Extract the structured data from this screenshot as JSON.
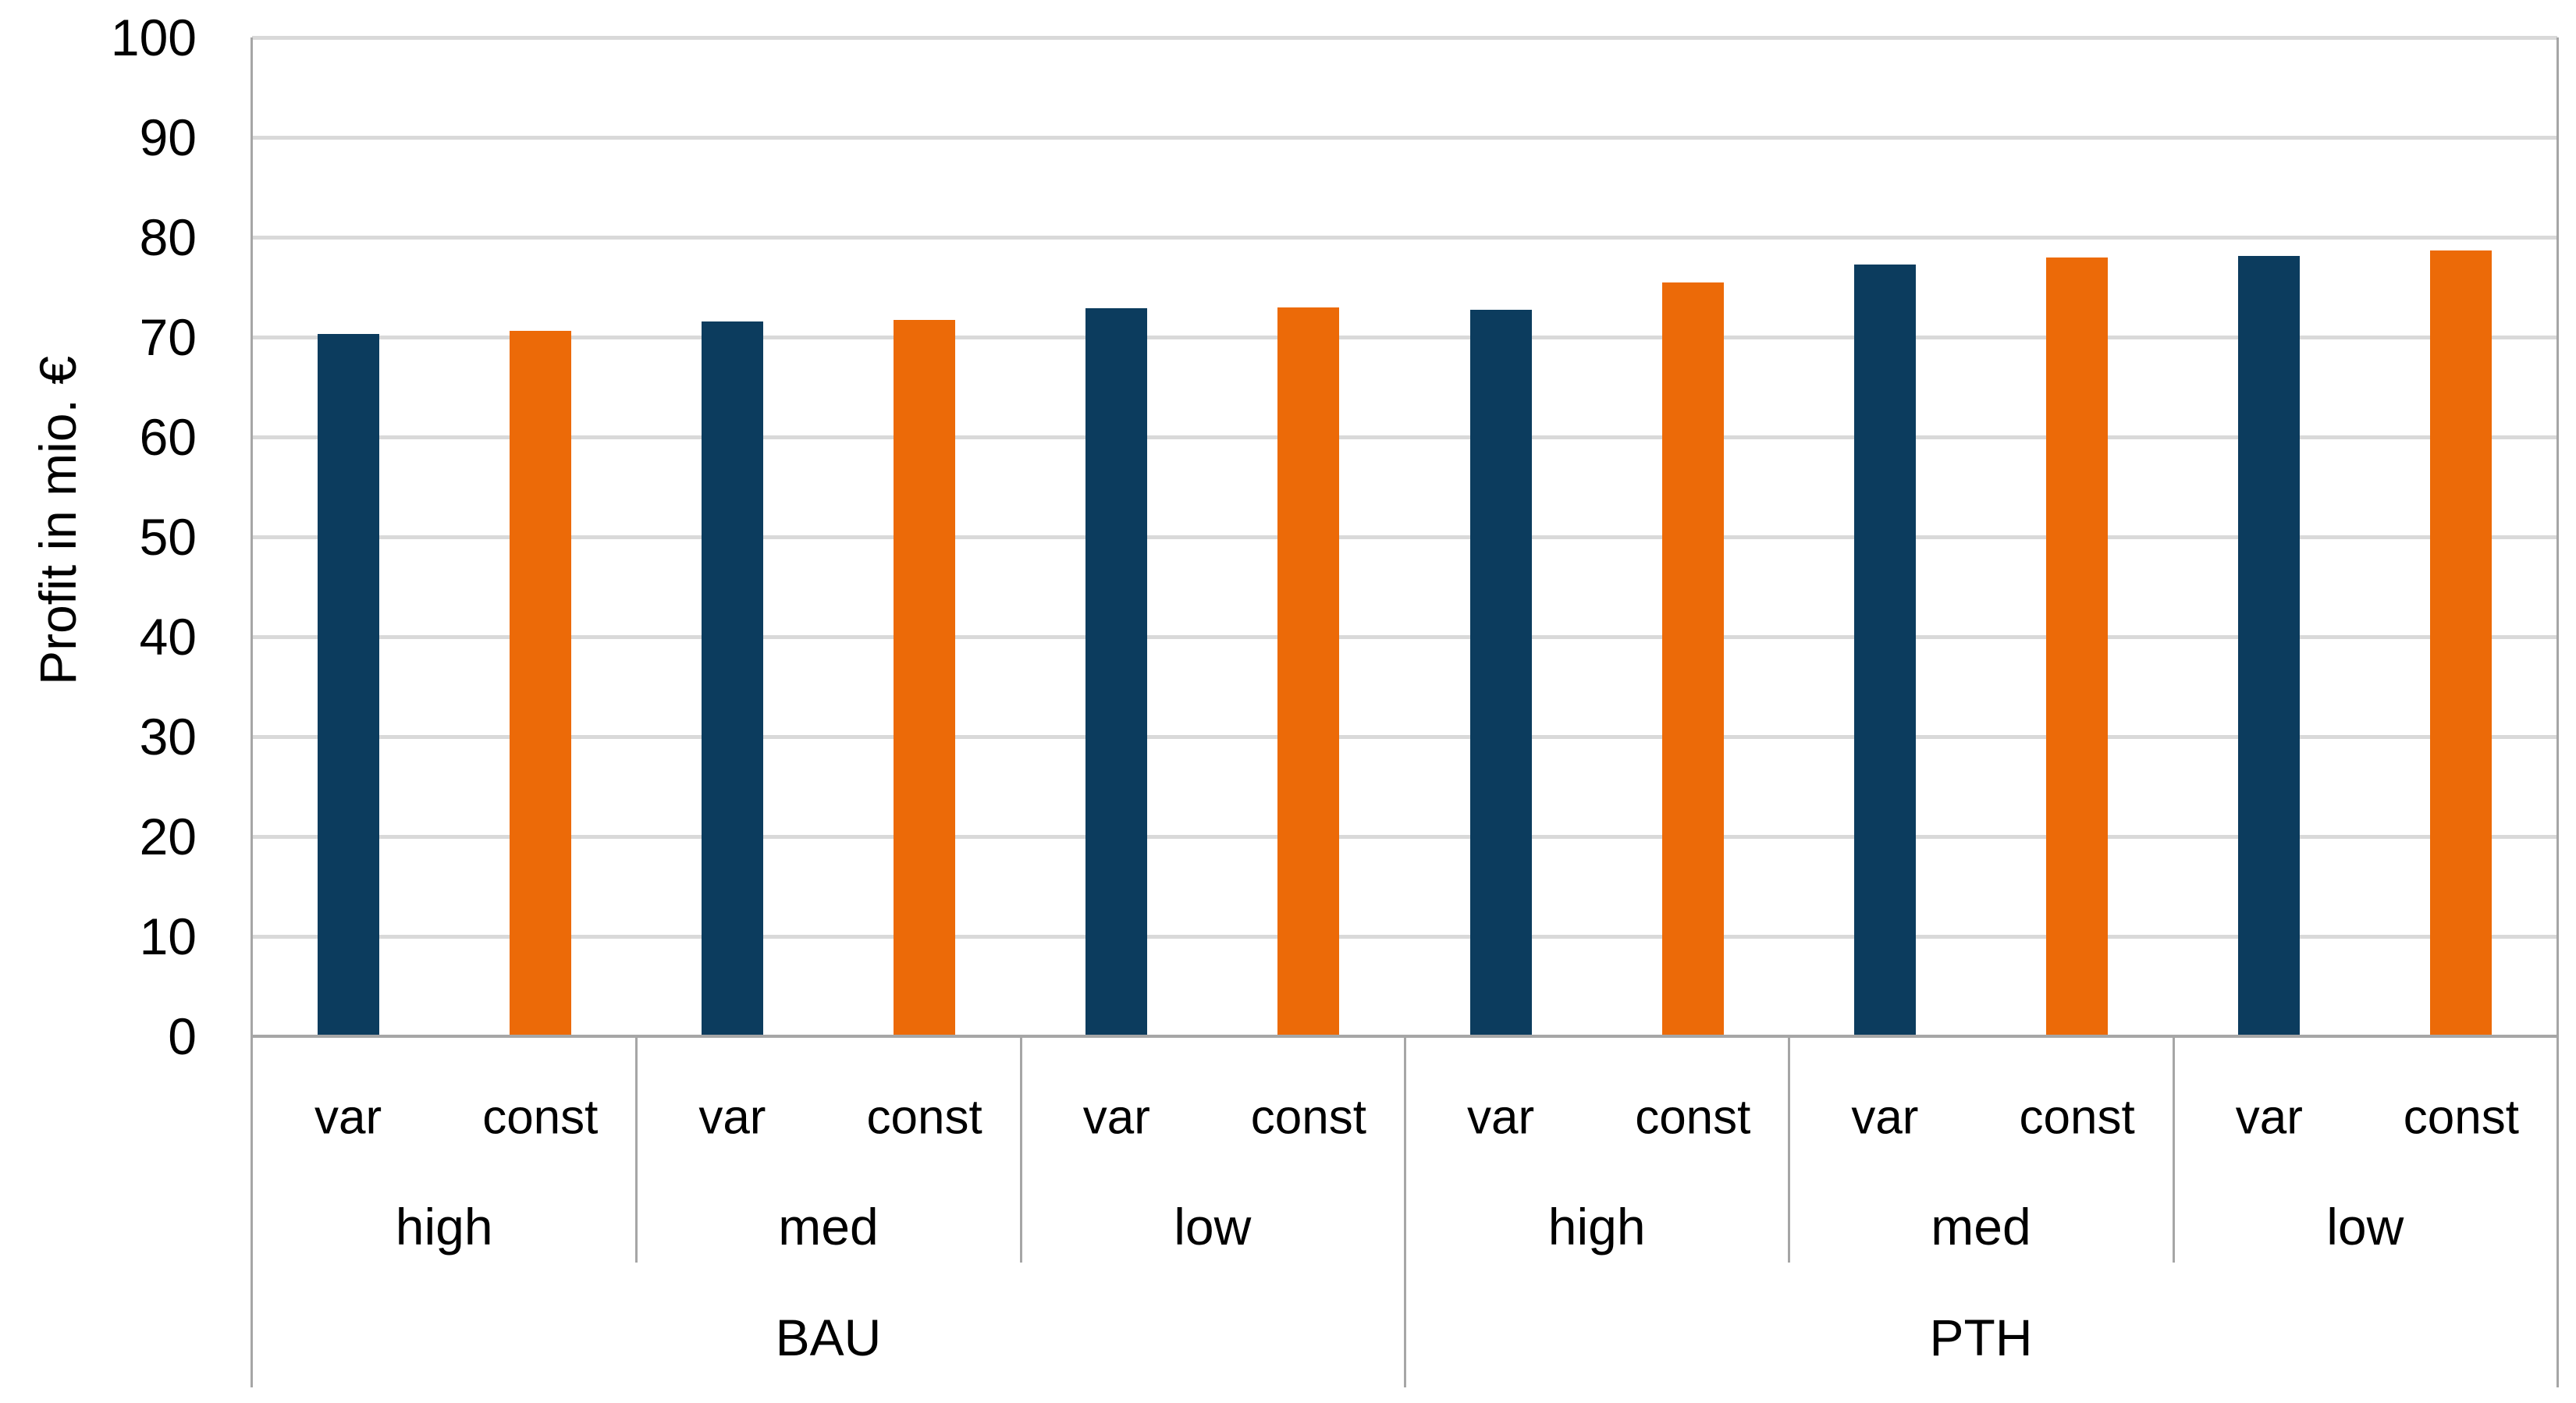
{
  "chart_data": {
    "type": "bar",
    "title": "",
    "ylabel": "Profit in mio. €",
    "xlabel": "",
    "ylim": [
      0,
      100
    ],
    "ytick_step": 10,
    "yticks": [
      0,
      10,
      20,
      30,
      40,
      50,
      60,
      70,
      80,
      90,
      100
    ],
    "grid": true,
    "legend_position": "none",
    "bar_labels": [
      "var",
      "const"
    ],
    "scenarios": [
      "BAU",
      "PTH"
    ],
    "demand_levels": [
      "high",
      "med",
      "low"
    ],
    "groups": [
      {
        "scenario": "BAU",
        "demand": "high",
        "values": {
          "var": 70.3,
          "const": 70.6
        }
      },
      {
        "scenario": "BAU",
        "demand": "med",
        "values": {
          "var": 71.6,
          "const": 71.7
        }
      },
      {
        "scenario": "BAU",
        "demand": "low",
        "values": {
          "var": 72.9,
          "const": 73.0
        }
      },
      {
        "scenario": "PTH",
        "demand": "high",
        "values": {
          "var": 72.7,
          "const": 75.5
        }
      },
      {
        "scenario": "PTH",
        "demand": "med",
        "values": {
          "var": 77.3,
          "const": 78.0
        }
      },
      {
        "scenario": "PTH",
        "demand": "low",
        "values": {
          "var": 78.1,
          "const": 78.7
        }
      }
    ]
  },
  "colors": {
    "var_bar": "#0c3c5e",
    "const_bar": "#ec6a08",
    "gridline": "#d9d9d9",
    "axis_line": "#a6a6a6",
    "label": "#000000",
    "background": "#ffffff"
  }
}
